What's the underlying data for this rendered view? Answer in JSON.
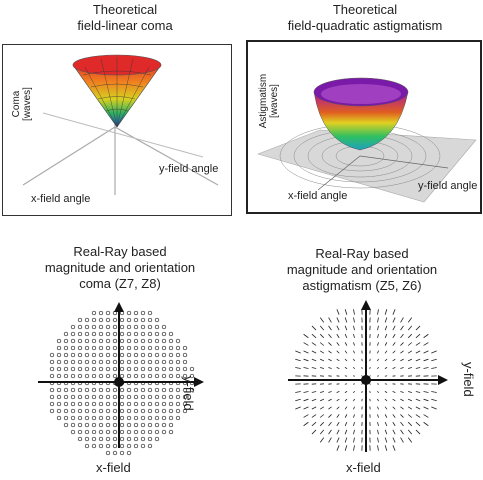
{
  "top_left": {
    "title_line1": "Theoretical",
    "title_line2": "field-linear coma",
    "z_label_line1": "Coma",
    "z_label_line2": "[waves]",
    "y_axis_label": "y-field angle",
    "x_axis_label": "x-field angle"
  },
  "top_right": {
    "title_line1": "Theoretical",
    "title_line2": "field-quadratic astigmatism",
    "z_label_line1": "Astigmatism",
    "z_label_line2": "[waves]",
    "y_axis_label": "y-field angle",
    "x_axis_label": "x-field angle"
  },
  "bottom_left": {
    "title_line1": "Real-Ray based",
    "title_line2": "magnitude and orientation",
    "title_line3": "coma (Z7, Z8)",
    "y_label": "y-field",
    "x_label": "x-field"
  },
  "bottom_right": {
    "title_line1": "Real-Ray based",
    "title_line2": "magnitude and orientation",
    "title_line3": "astigmatism (Z5, Z6)",
    "y_label": "y-field",
    "x_label": "x-field"
  },
  "colors": {
    "ink": "#222222",
    "surface_top": "#e0202a",
    "surface_mid": "#f0d020",
    "surface_low": "#30b060",
    "surface_bottom": "#2040c0",
    "astig_rim": "#8020c0"
  }
}
